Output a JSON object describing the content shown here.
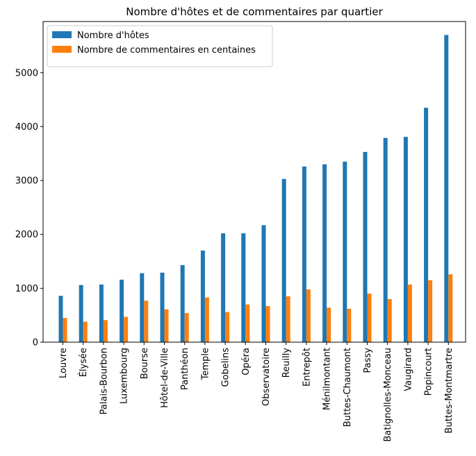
{
  "chart_data": {
    "type": "bar",
    "title": "Nombre d'hôtes et de commentaires par quartier",
    "xlabel": "",
    "ylabel": "",
    "ylim": [
      0,
      5950
    ],
    "yticks": [
      0,
      1000,
      2000,
      3000,
      4000,
      5000
    ],
    "ytick_labels": [
      "0",
      "1000",
      "2000",
      "3000",
      "4000",
      "5000"
    ],
    "legend_position": "top-left",
    "grid": false,
    "categories": [
      "Louvre",
      "Élysée",
      "Palais-Bourbon",
      "Luxembourg",
      "Bourse",
      "Hôtel-de-Ville",
      "Panthéon",
      "Temple",
      "Gobelins",
      "Opéra",
      "Observatoire",
      "Reuilly",
      "Entrepôt",
      "Ménilmontant",
      "Buttes-Chaumont",
      "Passy",
      "Batignolles-Monceau",
      "Vaugirard",
      "Popincourt",
      "Buttes-Montmartre"
    ],
    "series": [
      {
        "name": "Nombre d'hôtes",
        "color": "#1f77b4",
        "values": [
          860,
          1060,
          1070,
          1160,
          1280,
          1290,
          1430,
          1700,
          2020,
          2020,
          2170,
          3030,
          3260,
          3300,
          3350,
          3530,
          3790,
          3810,
          4350,
          5700
        ]
      },
      {
        "name": "Nombre de commentaires en centaines",
        "color": "#ff7f0e",
        "values": [
          450,
          380,
          410,
          470,
          770,
          610,
          540,
          830,
          560,
          700,
          670,
          850,
          980,
          640,
          620,
          900,
          800,
          1070,
          1150,
          1260
        ]
      }
    ]
  }
}
